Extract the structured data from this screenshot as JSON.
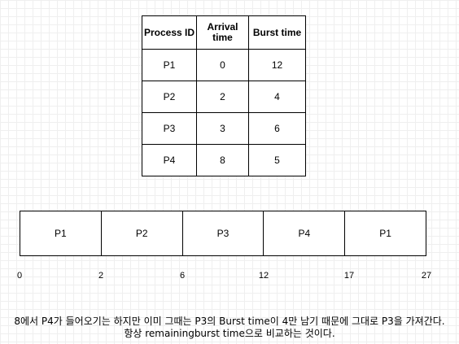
{
  "table": {
    "headers": {
      "process_id": "Process ID",
      "arrival_line1": "Arrival",
      "arrival_line2": "time",
      "burst": "Burst time"
    },
    "rows": [
      {
        "id": "P1",
        "arrival": "0",
        "burst": "12"
      },
      {
        "id": "P2",
        "arrival": "2",
        "burst": "4"
      },
      {
        "id": "P3",
        "arrival": "3",
        "burst": "6"
      },
      {
        "id": "P4",
        "arrival": "8",
        "burst": "5"
      }
    ]
  },
  "gantt": {
    "blocks": [
      "P1",
      "P2",
      "P3",
      "P4",
      "P1"
    ],
    "ticks": [
      "0",
      "2",
      "6",
      "12",
      "17",
      "27"
    ]
  },
  "notes": {
    "line1": "8에서 P4가 들어오기는 하지만 이미 그때는 P3의 Burst time이 4만 남기 때문에 그대로 P3을 가져간다.",
    "line2": "항상 remainingburst time으로 비교하는 것이다."
  }
}
